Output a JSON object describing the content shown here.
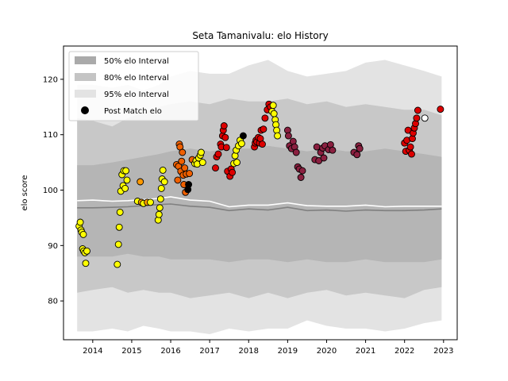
{
  "chart_data": {
    "type": "scatter",
    "title": "Seta Tamanivalu: elo History",
    "ylabel": "elo score",
    "xlabel": "",
    "xlim": [
      2013.25,
      2023.35
    ],
    "ylim": [
      73,
      126
    ],
    "x_ticks": [
      2014,
      2015,
      2016,
      2017,
      2018,
      2019,
      2020,
      2021,
      2022,
      2023
    ],
    "y_ticks": [
      80,
      90,
      100,
      110,
      120
    ],
    "legend_position": "top-left",
    "legend": [
      {
        "label": "50% elo Interval",
        "color": "#aaaaaa"
      },
      {
        "label": "80% elo Interval",
        "color": "#c4c4c4"
      },
      {
        "label": "95% elo Interval",
        "color": "#e3e3e3"
      },
      {
        "label": "Post Match elo",
        "color": "#000000"
      }
    ],
    "colors": {
      "band95": "#e3e3e3",
      "band80": "#c8c8c8",
      "band50": "#b5b5b5",
      "mean_line": "#808080",
      "median_line": "#ffffff"
    },
    "band_x": [
      2013.6,
      2014.0,
      2014.5,
      2014.9,
      2015.3,
      2015.7,
      2016.0,
      2016.5,
      2017.0,
      2017.5,
      2018.0,
      2018.5,
      2019.0,
      2019.5,
      2020.0,
      2020.5,
      2021.0,
      2021.5,
      2022.0,
      2022.5,
      2022.95
    ],
    "band95_upper": [
      119,
      119,
      118.5,
      119,
      118,
      119,
      120.5,
      121.5,
      121,
      121,
      122.5,
      123.5,
      121.5,
      120.5,
      121,
      121.5,
      123,
      123.5,
      122.5,
      121.5,
      120.5
    ],
    "band95_lower": [
      74.5,
      74.5,
      75,
      74.5,
      75.5,
      75,
      74.5,
      74.5,
      74,
      75,
      74.5,
      75,
      75,
      76.5,
      75.5,
      75,
      75,
      74.5,
      75,
      76,
      76.5
    ],
    "band80_upper": [
      113,
      112.5,
      111.5,
      113,
      114,
      115,
      115.5,
      116,
      115.5,
      116.5,
      116,
      116,
      116.5,
      115.5,
      116,
      115,
      115.5,
      115,
      114.5,
      114.5,
      113.5
    ],
    "band80_lower": [
      81.5,
      82,
      82.5,
      81.5,
      82,
      81.5,
      81.5,
      80.5,
      81,
      81.5,
      80.5,
      81.5,
      80.5,
      81.5,
      82,
      81,
      81.5,
      81,
      80.5,
      82,
      82.5
    ],
    "band50_upper": [
      104.5,
      104.5,
      105,
      105.5,
      106,
      106.5,
      107,
      107.5,
      107,
      107.5,
      107.5,
      108,
      107.5,
      107,
      107.5,
      107,
      107,
      107.5,
      107,
      106.5,
      106
    ],
    "band50_lower": [
      88,
      88,
      88,
      88.5,
      88,
      88,
      87.5,
      87.5,
      87.5,
      87,
      87.5,
      87.5,
      87,
      87.5,
      87,
      87,
      87.5,
      87,
      87,
      87,
      87.5
    ],
    "mean_line": [
      96.8,
      96.8,
      96.9,
      97.0,
      97.2,
      97.4,
      97.5,
      97.1,
      96.9,
      96.3,
      96.6,
      96.4,
      96.9,
      96.3,
      96.4,
      96.2,
      96.4,
      96.3,
      96.3,
      96.4,
      96.6
    ],
    "median_line": [
      98.1,
      98.2,
      98.0,
      98.1,
      98.3,
      98.5,
      98.8,
      98.2,
      98.0,
      97.0,
      97.3,
      97.3,
      97.7,
      97.2,
      97.1,
      97.1,
      97.3,
      97.0,
      97.1,
      97.1,
      97.1
    ],
    "points": [
      {
        "x": 2013.65,
        "y": 93.5,
        "color": "#ffff00"
      },
      {
        "x": 2013.68,
        "y": 94.2,
        "color": "#ffff00"
      },
      {
        "x": 2013.7,
        "y": 92.8,
        "color": "#ffff00"
      },
      {
        "x": 2013.72,
        "y": 92.4,
        "color": "#ffff00"
      },
      {
        "x": 2013.74,
        "y": 89.4,
        "color": "#ffff00"
      },
      {
        "x": 2013.77,
        "y": 89.0,
        "color": "#ffff00"
      },
      {
        "x": 2013.76,
        "y": 92.0,
        "color": "#ffff00"
      },
      {
        "x": 2013.8,
        "y": 88.7,
        "color": "#ffff00"
      },
      {
        "x": 2013.82,
        "y": 86.8,
        "color": "#ffff00"
      },
      {
        "x": 2013.85,
        "y": 89.0,
        "color": "#ffff00"
      },
      {
        "x": 2014.63,
        "y": 86.6,
        "color": "#ffff00"
      },
      {
        "x": 2014.66,
        "y": 90.2,
        "color": "#ffff00"
      },
      {
        "x": 2014.68,
        "y": 93.3,
        "color": "#ffff00"
      },
      {
        "x": 2014.7,
        "y": 96.0,
        "color": "#ffff00"
      },
      {
        "x": 2014.72,
        "y": 99.8,
        "color": "#ffff00"
      },
      {
        "x": 2014.75,
        "y": 102.8,
        "color": "#ffff00"
      },
      {
        "x": 2014.78,
        "y": 100.8,
        "color": "#ffff00"
      },
      {
        "x": 2014.8,
        "y": 103.5,
        "color": "#ffff00"
      },
      {
        "x": 2014.83,
        "y": 100.3,
        "color": "#ffff00"
      },
      {
        "x": 2014.85,
        "y": 103.5,
        "color": "#ffff00"
      },
      {
        "x": 2014.88,
        "y": 101.8,
        "color": "#ffff00"
      },
      {
        "x": 2015.15,
        "y": 98.0,
        "color": "#ffff00"
      },
      {
        "x": 2015.22,
        "y": 101.5,
        "color": "#ff9900"
      },
      {
        "x": 2015.25,
        "y": 97.8,
        "color": "#ff9900"
      },
      {
        "x": 2015.3,
        "y": 97.6,
        "color": "#ffff00"
      },
      {
        "x": 2015.4,
        "y": 97.8,
        "color": "#ff9900"
      },
      {
        "x": 2015.48,
        "y": 97.8,
        "color": "#ffff00"
      },
      {
        "x": 2015.68,
        "y": 94.6,
        "color": "#ffff00"
      },
      {
        "x": 2015.7,
        "y": 95.6,
        "color": "#ffff00"
      },
      {
        "x": 2015.72,
        "y": 96.8,
        "color": "#ffff00"
      },
      {
        "x": 2015.74,
        "y": 98.4,
        "color": "#ffff00"
      },
      {
        "x": 2015.76,
        "y": 100.3,
        "color": "#ffff00"
      },
      {
        "x": 2015.78,
        "y": 102.0,
        "color": "#ffff00"
      },
      {
        "x": 2015.8,
        "y": 103.6,
        "color": "#ffff00"
      },
      {
        "x": 2015.84,
        "y": 101.5,
        "color": "#ffff00"
      },
      {
        "x": 2016.15,
        "y": 104.6,
        "color": "#f06000"
      },
      {
        "x": 2016.18,
        "y": 101.8,
        "color": "#f06000"
      },
      {
        "x": 2016.2,
        "y": 104.3,
        "color": "#f06000"
      },
      {
        "x": 2016.22,
        "y": 108.3,
        "color": "#f06000"
      },
      {
        "x": 2016.24,
        "y": 107.8,
        "color": "#f06000"
      },
      {
        "x": 2016.26,
        "y": 103.4,
        "color": "#f06000"
      },
      {
        "x": 2016.28,
        "y": 105.2,
        "color": "#f06000"
      },
      {
        "x": 2016.3,
        "y": 106.8,
        "color": "#f06000"
      },
      {
        "x": 2016.32,
        "y": 102.7,
        "color": "#f06000"
      },
      {
        "x": 2016.34,
        "y": 101.0,
        "color": "#f06000"
      },
      {
        "x": 2016.36,
        "y": 104.0,
        "color": "#f06000"
      },
      {
        "x": 2016.38,
        "y": 99.6,
        "color": "#f06000"
      },
      {
        "x": 2016.4,
        "y": 102.9,
        "color": "#f06000"
      },
      {
        "x": 2016.44,
        "y": 100.1,
        "color": "#000000"
      },
      {
        "x": 2016.46,
        "y": 101.0,
        "color": "#000000"
      },
      {
        "x": 2016.48,
        "y": 103.0,
        "color": "#f06000"
      },
      {
        "x": 2016.55,
        "y": 105.5,
        "color": "#f06000"
      },
      {
        "x": 2016.62,
        "y": 104.8,
        "color": "#ffff00"
      },
      {
        "x": 2016.65,
        "y": 105.3,
        "color": "#ffff00"
      },
      {
        "x": 2016.68,
        "y": 104.7,
        "color": "#ffff00"
      },
      {
        "x": 2016.72,
        "y": 105.8,
        "color": "#ffff00"
      },
      {
        "x": 2016.76,
        "y": 106.3,
        "color": "#ffff00"
      },
      {
        "x": 2016.78,
        "y": 106.8,
        "color": "#ffff00"
      },
      {
        "x": 2016.82,
        "y": 105.0,
        "color": "#ffff00"
      },
      {
        "x": 2017.15,
        "y": 104.0,
        "color": "#dd0000"
      },
      {
        "x": 2017.18,
        "y": 106.0,
        "color": "#dd0000"
      },
      {
        "x": 2017.22,
        "y": 106.5,
        "color": "#dd0000"
      },
      {
        "x": 2017.28,
        "y": 108.3,
        "color": "#dd0000"
      },
      {
        "x": 2017.3,
        "y": 107.8,
        "color": "#dd0000"
      },
      {
        "x": 2017.33,
        "y": 109.8,
        "color": "#dd0000"
      },
      {
        "x": 2017.35,
        "y": 110.8,
        "color": "#dd0000"
      },
      {
        "x": 2017.37,
        "y": 111.6,
        "color": "#dd0000"
      },
      {
        "x": 2017.4,
        "y": 109.5,
        "color": "#dd0000"
      },
      {
        "x": 2017.43,
        "y": 107.7,
        "color": "#dd0000"
      },
      {
        "x": 2017.46,
        "y": 103.4,
        "color": "#dd0000"
      },
      {
        "x": 2017.52,
        "y": 102.5,
        "color": "#dd0000"
      },
      {
        "x": 2017.55,
        "y": 103.8,
        "color": "#dd0000"
      },
      {
        "x": 2017.58,
        "y": 103.2,
        "color": "#dd0000"
      },
      {
        "x": 2017.62,
        "y": 104.8,
        "color": "#ffff00"
      },
      {
        "x": 2017.65,
        "y": 106.2,
        "color": "#ffff00"
      },
      {
        "x": 2017.68,
        "y": 107.2,
        "color": "#ffff00"
      },
      {
        "x": 2017.7,
        "y": 105.0,
        "color": "#ffff00"
      },
      {
        "x": 2017.74,
        "y": 108.0,
        "color": "#ffff00"
      },
      {
        "x": 2017.78,
        "y": 109.0,
        "color": "#ffff00"
      },
      {
        "x": 2017.82,
        "y": 108.4,
        "color": "#ffff00"
      },
      {
        "x": 2017.86,
        "y": 109.8,
        "color": "#000000"
      },
      {
        "x": 2018.15,
        "y": 107.8,
        "color": "#dd0000"
      },
      {
        "x": 2018.17,
        "y": 108.5,
        "color": "#dd0000"
      },
      {
        "x": 2018.19,
        "y": 109.0,
        "color": "#dd0000"
      },
      {
        "x": 2018.21,
        "y": 108.7,
        "color": "#dd0000"
      },
      {
        "x": 2018.25,
        "y": 109.5,
        "color": "#dd0000"
      },
      {
        "x": 2018.28,
        "y": 108.5,
        "color": "#dd0000"
      },
      {
        "x": 2018.3,
        "y": 109.3,
        "color": "#dd0000"
      },
      {
        "x": 2018.32,
        "y": 110.8,
        "color": "#dd0000"
      },
      {
        "x": 2018.35,
        "y": 108.3,
        "color": "#dd0000"
      },
      {
        "x": 2018.38,
        "y": 111.0,
        "color": "#dd0000"
      },
      {
        "x": 2018.42,
        "y": 113.0,
        "color": "#dd0000"
      },
      {
        "x": 2018.48,
        "y": 114.5,
        "color": "#dd0000"
      },
      {
        "x": 2018.52,
        "y": 115.5,
        "color": "#dd0000"
      },
      {
        "x": 2018.56,
        "y": 115.0,
        "color": "#dd0000"
      },
      {
        "x": 2018.6,
        "y": 114.2,
        "color": "#ffff00"
      },
      {
        "x": 2018.63,
        "y": 115.3,
        "color": "#ffff00"
      },
      {
        "x": 2018.65,
        "y": 113.8,
        "color": "#ffff00"
      },
      {
        "x": 2018.68,
        "y": 112.7,
        "color": "#ffff00"
      },
      {
        "x": 2018.7,
        "y": 111.8,
        "color": "#ffff00"
      },
      {
        "x": 2018.72,
        "y": 110.8,
        "color": "#ffff00"
      },
      {
        "x": 2018.74,
        "y": 109.8,
        "color": "#ffff00"
      },
      {
        "x": 2019.0,
        "y": 110.8,
        "color": "#8b2040"
      },
      {
        "x": 2019.02,
        "y": 109.8,
        "color": "#8b2040"
      },
      {
        "x": 2019.05,
        "y": 108.0,
        "color": "#8b2040"
      },
      {
        "x": 2019.1,
        "y": 107.5,
        "color": "#8b2040"
      },
      {
        "x": 2019.14,
        "y": 108.8,
        "color": "#8b2040"
      },
      {
        "x": 2019.18,
        "y": 107.8,
        "color": "#8b2040"
      },
      {
        "x": 2019.22,
        "y": 106.8,
        "color": "#8b2040"
      },
      {
        "x": 2019.26,
        "y": 104.2,
        "color": "#8b2040"
      },
      {
        "x": 2019.3,
        "y": 103.8,
        "color": "#8b2040"
      },
      {
        "x": 2019.34,
        "y": 102.3,
        "color": "#8b2040"
      },
      {
        "x": 2019.38,
        "y": 103.5,
        "color": "#8b2040"
      },
      {
        "x": 2019.7,
        "y": 105.5,
        "color": "#8b2040"
      },
      {
        "x": 2019.75,
        "y": 107.8,
        "color": "#8b2040"
      },
      {
        "x": 2019.8,
        "y": 105.3,
        "color": "#8b2040"
      },
      {
        "x": 2019.85,
        "y": 106.8,
        "color": "#8b2040"
      },
      {
        "x": 2019.9,
        "y": 107.6,
        "color": "#8b2040"
      },
      {
        "x": 2019.93,
        "y": 105.8,
        "color": "#8b2040"
      },
      {
        "x": 2019.96,
        "y": 108.0,
        "color": "#8b2040"
      },
      {
        "x": 2020.05,
        "y": 107.3,
        "color": "#8b2040"
      },
      {
        "x": 2020.1,
        "y": 108.2,
        "color": "#8b2040"
      },
      {
        "x": 2020.15,
        "y": 107.2,
        "color": "#8b2040"
      },
      {
        "x": 2020.7,
        "y": 106.8,
        "color": "#8b2040"
      },
      {
        "x": 2020.78,
        "y": 106.4,
        "color": "#8b2040"
      },
      {
        "x": 2020.82,
        "y": 108.0,
        "color": "#8b2040"
      },
      {
        "x": 2020.85,
        "y": 107.5,
        "color": "#8b2040"
      },
      {
        "x": 2022.0,
        "y": 108.5,
        "color": "#dd0000"
      },
      {
        "x": 2022.03,
        "y": 107.0,
        "color": "#dd0000"
      },
      {
        "x": 2022.06,
        "y": 109.0,
        "color": "#dd0000"
      },
      {
        "x": 2022.09,
        "y": 110.8,
        "color": "#dd0000"
      },
      {
        "x": 2022.12,
        "y": 107.2,
        "color": "#dd0000"
      },
      {
        "x": 2022.15,
        "y": 107.8,
        "color": "#dd0000"
      },
      {
        "x": 2022.18,
        "y": 106.5,
        "color": "#dd0000"
      },
      {
        "x": 2022.2,
        "y": 109.3,
        "color": "#dd0000"
      },
      {
        "x": 2022.22,
        "y": 110.3,
        "color": "#dd0000"
      },
      {
        "x": 2022.25,
        "y": 111.2,
        "color": "#dd0000"
      },
      {
        "x": 2022.28,
        "y": 112.0,
        "color": "#dd0000"
      },
      {
        "x": 2022.31,
        "y": 113.0,
        "color": "#dd0000"
      },
      {
        "x": 2022.34,
        "y": 114.4,
        "color": "#dd0000"
      },
      {
        "x": 2022.52,
        "y": 113.0,
        "color": "#ffffff"
      },
      {
        "x": 2022.92,
        "y": 114.6,
        "color": "#dd0000"
      }
    ]
  }
}
